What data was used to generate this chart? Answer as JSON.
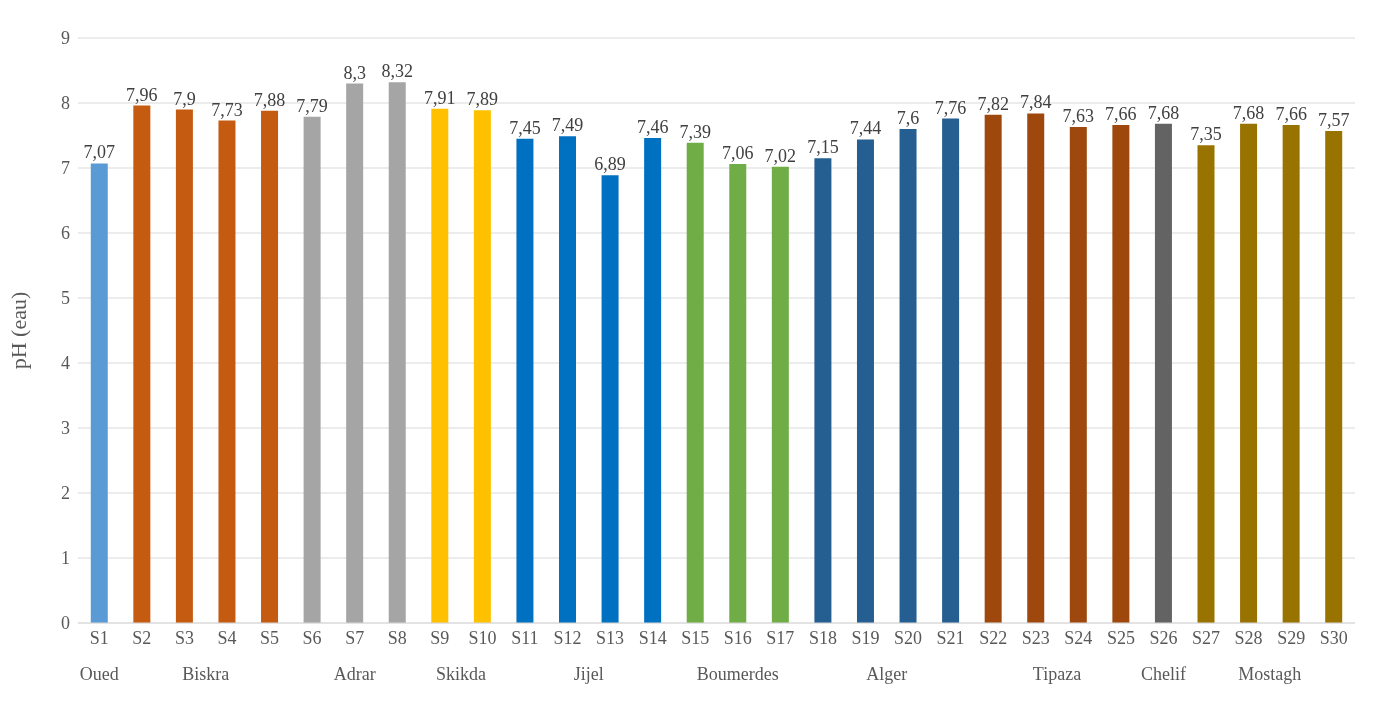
{
  "chart_data": {
    "type": "bar",
    "ylabel": "pH (eau)",
    "categories": [
      "S1",
      "S2",
      "S3",
      "S4",
      "S5",
      "S6",
      "S7",
      "S8",
      "S9",
      "S10",
      "S11",
      "S12",
      "S13",
      "S14",
      "S15",
      "S16",
      "S17",
      "S18",
      "S19",
      "S20",
      "S21",
      "S22",
      "S23",
      "S24",
      "S25",
      "S26",
      "S27",
      "S28",
      "S29",
      "S30"
    ],
    "values": [
      7.07,
      7.96,
      7.9,
      7.73,
      7.88,
      7.79,
      8.3,
      8.32,
      7.91,
      7.89,
      7.45,
      7.49,
      6.89,
      7.46,
      7.39,
      7.06,
      7.02,
      7.15,
      7.44,
      7.6,
      7.76,
      7.82,
      7.84,
      7.63,
      7.66,
      7.68,
      7.35,
      7.68,
      7.66,
      7.57
    ],
    "value_labels": [
      "7,07",
      "7,96",
      "7,9",
      "7,73",
      "7,88",
      "7,79",
      "8,3",
      "8,32",
      "7,91",
      "7,89",
      "7,45",
      "7,49",
      "6,89",
      "7,46",
      "7,39",
      "7,06",
      "7,02",
      "7,15",
      "7,44",
      "7,6",
      "7,76",
      "7,82",
      "7,84",
      "7,63",
      "7,66",
      "7,68",
      "7,35",
      "7,68",
      "7,66",
      "7,57"
    ],
    "colors": [
      "#5b9bd5",
      "#c55a11",
      "#c55a11",
      "#c55a11",
      "#c55a11",
      "#a5a5a5",
      "#a5a5a5",
      "#a5a5a5",
      "#ffc000",
      "#ffc000",
      "#0070c0",
      "#0070c0",
      "#0070c0",
      "#0070c0",
      "#70ad47",
      "#70ad47",
      "#70ad47",
      "#255e91",
      "#255e91",
      "#255e91",
      "#255e91",
      "#9e480e",
      "#9e480e",
      "#9e480e",
      "#9e480e",
      "#636363",
      "#997300",
      "#997300",
      "#997300",
      "#997300"
    ],
    "ylim": [
      0,
      9
    ],
    "yticks": [
      0,
      1,
      2,
      3,
      4,
      5,
      6,
      7,
      8,
      9
    ],
    "grid": "y",
    "annotations": [
      "Oued",
      "Biskra",
      "Adrar",
      "Skikda",
      "Jijel",
      "Boumerdes",
      "Alger",
      "Tipaza",
      "Chelif",
      "Mostagh"
    ]
  }
}
